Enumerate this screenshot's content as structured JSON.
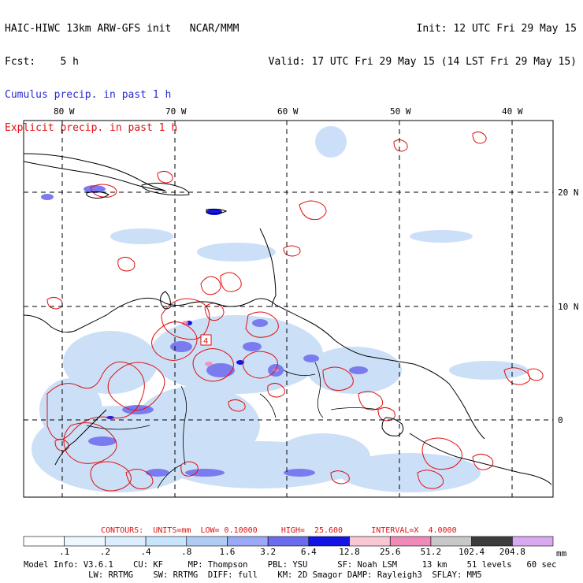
{
  "header": {
    "title_line": "HAIC-HIWC 13km ARW-GFS init   NCAR/MMM",
    "fcst_line": "Fcst:    5 h",
    "cumulus_line": "Cumulus precip. in past 1 h",
    "explicit_line": "Explicit precip. in past 1 h",
    "init_line": "Init: 12 UTC Fri 29 May 15",
    "valid_line": "Valid: 17 UTC Fri 29 May 15 (14 LST Fri 29 May 15)"
  },
  "map": {
    "lon_labels": [
      "80 W",
      "70 W",
      "60 W",
      "50 W",
      "40 W"
    ],
    "lat_labels": [
      "20 N",
      "10 N",
      "0"
    ],
    "station_labels": [
      "4"
    ],
    "colors": {
      "coast": "#000000",
      "explicit_contour": "#e01010",
      "cumulus_light": "#c6dcf7",
      "cumulus_mid": "#6b6bf0",
      "cumulus_dark": "#1414e6",
      "grid": "#000000"
    }
  },
  "colorbar": {
    "labels": [
      ".1",
      ".2",
      ".4",
      ".8",
      "1.6",
      "3.2",
      "6.4",
      "12.8",
      "25.6",
      "51.2",
      "102.4",
      "204.8"
    ],
    "units": "mm",
    "colors": [
      "#ffffff",
      "#eef6ff",
      "#dbeefe",
      "#c8e4fc",
      "#b0ccf5",
      "#9aa8f5",
      "#6b6bf0",
      "#1414e6",
      "#f7c8d2",
      "#f08ab8",
      "#c8c8c8",
      "#3c3c3c",
      "#d8a8f0"
    ]
  },
  "contours": {
    "label": "CONTOURS:",
    "units": "UNITS=mm",
    "low": "LOW= 0.10000",
    "high": "HIGH=  25.600",
    "interval": "INTERVAL=X  4.0000"
  },
  "model_info": {
    "line1": "Model Info: V3.6.1    CU: KF     MP: Thompson    PBL: YSU      SF: Noah LSM     13 km    51 levels   60 sec",
    "line2": "             LW: RRTMG    SW: RRTMG  DIFF: full    KM: 2D Smagor DAMP: Rayleigh3  SFLAY: MM5"
  }
}
